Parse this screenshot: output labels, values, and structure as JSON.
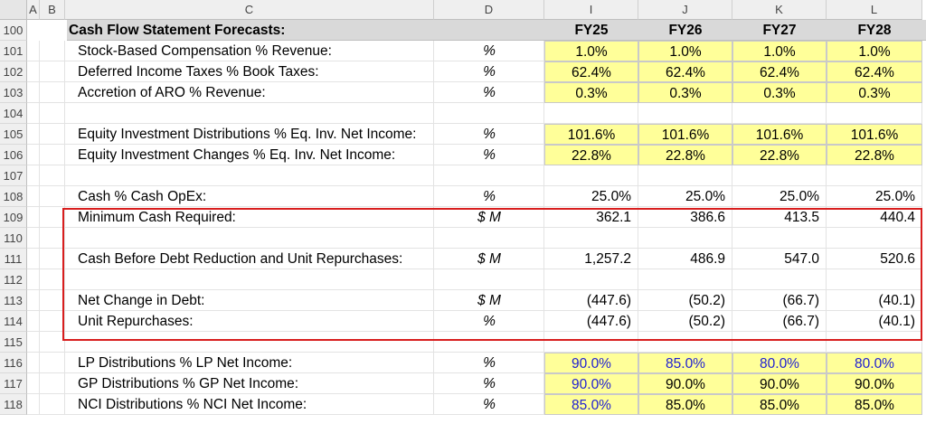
{
  "columns": [
    "A",
    "B",
    "C",
    "D",
    "I",
    "J",
    "K",
    "L"
  ],
  "title": {
    "row": "100",
    "label": "Cash Flow Statement Forecasts:",
    "years": [
      "FY25",
      "FY26",
      "FY27",
      "FY28"
    ]
  },
  "rows": [
    {
      "row": "101",
      "label": "Stock-Based Compensation % Revenue:",
      "unit": "%",
      "style": "input",
      "values": [
        "1.0%",
        "1.0%",
        "1.0%",
        "1.0%"
      ]
    },
    {
      "row": "102",
      "label": "Deferred Income Taxes % Book Taxes:",
      "unit": "%",
      "style": "input",
      "values": [
        "62.4%",
        "62.4%",
        "62.4%",
        "62.4%"
      ]
    },
    {
      "row": "103",
      "label": "Accretion of ARO % Revenue:",
      "unit": "%",
      "style": "input",
      "values": [
        "0.3%",
        "0.3%",
        "0.3%",
        "0.3%"
      ]
    },
    {
      "row": "104",
      "label": "",
      "unit": "",
      "style": "empty",
      "values": []
    },
    {
      "row": "105",
      "label": "Equity Investment Distributions % Eq. Inv. Net Income:",
      "unit": "%",
      "style": "input",
      "values": [
        "101.6%",
        "101.6%",
        "101.6%",
        "101.6%"
      ]
    },
    {
      "row": "106",
      "label": "Equity Investment Changes % Eq. Inv. Net Income:",
      "unit": "%",
      "style": "input",
      "values": [
        "22.8%",
        "22.8%",
        "22.8%",
        "22.8%"
      ]
    },
    {
      "row": "107",
      "label": "",
      "unit": "",
      "style": "empty",
      "values": []
    },
    {
      "row": "108",
      "label": "Cash % Cash OpEx:",
      "unit": "%",
      "style": "plain",
      "values": [
        "25.0%",
        "25.0%",
        "25.0%",
        "25.0%"
      ]
    },
    {
      "row": "109",
      "label": "Minimum Cash Required:",
      "unit": "$ M",
      "style": "plain",
      "values": [
        "362.1",
        "386.6",
        "413.5",
        "440.4"
      ]
    },
    {
      "row": "110",
      "label": "",
      "unit": "",
      "style": "empty",
      "values": []
    },
    {
      "row": "111",
      "label": "Cash Before Debt Reduction and Unit Repurchases:",
      "unit": "$ M",
      "style": "plain",
      "values": [
        "1,257.2",
        "486.9",
        "547.0",
        "520.6"
      ]
    },
    {
      "row": "112",
      "label": "",
      "unit": "",
      "style": "empty",
      "values": []
    },
    {
      "row": "113",
      "label": "Net Change in Debt:",
      "unit": "$ M",
      "style": "plain",
      "values": [
        "(447.6)",
        "(50.2)",
        "(66.7)",
        "(40.1)"
      ]
    },
    {
      "row": "114",
      "label": "Unit Repurchases:",
      "unit": "%",
      "style": "plain",
      "values": [
        "(447.6)",
        "(50.2)",
        "(66.7)",
        "(40.1)"
      ]
    },
    {
      "row": "115",
      "label": "",
      "unit": "",
      "style": "empty",
      "values": []
    },
    {
      "row": "116",
      "label": "LP Distributions % LP Net Income:",
      "unit": "%",
      "style": "input",
      "blue": [
        true,
        true,
        true,
        true
      ],
      "values": [
        "90.0%",
        "85.0%",
        "80.0%",
        "80.0%"
      ]
    },
    {
      "row": "117",
      "label": "GP Distributions % GP Net Income:",
      "unit": "%",
      "style": "input",
      "blue": [
        true,
        false,
        false,
        false
      ],
      "values": [
        "90.0%",
        "90.0%",
        "90.0%",
        "90.0%"
      ]
    },
    {
      "row": "118",
      "label": "NCI Distributions % NCI Net Income:",
      "unit": "%",
      "style": "input",
      "blue": [
        true,
        false,
        false,
        false
      ],
      "values": [
        "85.0%",
        "85.0%",
        "85.0%",
        "85.0%"
      ]
    }
  ],
  "colors": {
    "input_fill": "#ffff99",
    "title_band": "#d9d9d9",
    "highlight_border": "#d81e1e",
    "blue_input": "#1f1fd1"
  }
}
